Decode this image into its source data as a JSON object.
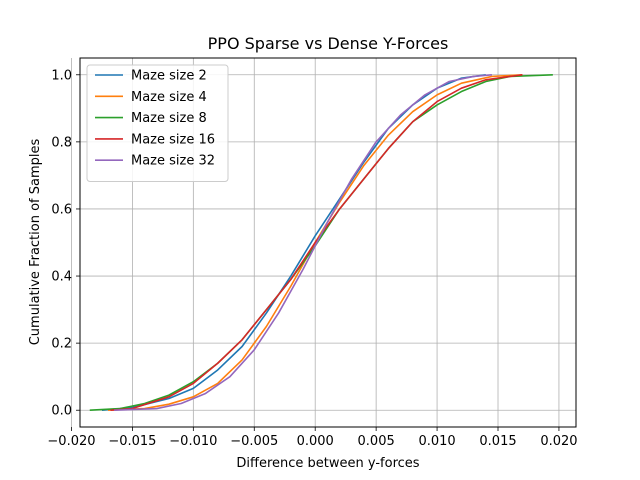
{
  "chart_data": {
    "type": "line",
    "title": "PPO Sparse vs Dense Y-Forces",
    "xlabel": "Difference between y-forces",
    "ylabel": "Cumulative Fraction of Samples",
    "xlim": [
      -0.0193,
      0.0214
    ],
    "ylim": [
      -0.05,
      1.05
    ],
    "x_ticks": [
      -0.02,
      -0.015,
      -0.01,
      -0.005,
      0.0,
      0.005,
      0.01,
      0.015,
      0.02
    ],
    "x_tick_labels": [
      "−0.020",
      "−0.015",
      "−0.010",
      "−0.005",
      "0.000",
      "0.005",
      "0.010",
      "0.015",
      "0.020"
    ],
    "y_ticks": [
      0.0,
      0.2,
      0.4,
      0.6,
      0.8,
      1.0
    ],
    "y_tick_labels": [
      "0.0",
      "0.2",
      "0.4",
      "0.6",
      "0.8",
      "1.0"
    ],
    "grid": true,
    "legend_position": "upper-left",
    "series": [
      {
        "name": "Maze size 2",
        "color": "#1f77b4",
        "x": [
          -0.0175,
          -0.015,
          -0.012,
          -0.01,
          -0.008,
          -0.006,
          -0.004,
          -0.002,
          0.0,
          0.002,
          0.004,
          0.006,
          0.008,
          0.01,
          0.012,
          0.014
        ],
        "y": [
          0.0,
          0.008,
          0.035,
          0.065,
          0.12,
          0.19,
          0.29,
          0.4,
          0.52,
          0.63,
          0.74,
          0.84,
          0.91,
          0.96,
          0.99,
          1.0
        ]
      },
      {
        "name": "Maze size 4",
        "color": "#ff7f0e",
        "x": [
          -0.017,
          -0.014,
          -0.012,
          -0.01,
          -0.008,
          -0.006,
          -0.004,
          -0.002,
          0.0,
          0.002,
          0.004,
          0.006,
          0.008,
          0.01,
          0.012,
          0.0145,
          0.017
        ],
        "y": [
          0.0,
          0.005,
          0.018,
          0.04,
          0.08,
          0.15,
          0.25,
          0.37,
          0.5,
          0.62,
          0.73,
          0.82,
          0.89,
          0.94,
          0.975,
          0.995,
          1.0
        ]
      },
      {
        "name": "Maze size 8",
        "color": "#2ca02c",
        "x": [
          -0.0185,
          -0.016,
          -0.014,
          -0.012,
          -0.01,
          -0.008,
          -0.006,
          -0.004,
          -0.002,
          0.0,
          0.002,
          0.004,
          0.006,
          0.008,
          0.01,
          0.012,
          0.014,
          0.016,
          0.0195
        ],
        "y": [
          0.0,
          0.005,
          0.02,
          0.045,
          0.085,
          0.14,
          0.21,
          0.3,
          0.39,
          0.49,
          0.6,
          0.69,
          0.78,
          0.86,
          0.91,
          0.95,
          0.98,
          0.995,
          1.0
        ]
      },
      {
        "name": "Maze size 16",
        "color": "#d62728",
        "x": [
          -0.0168,
          -0.015,
          -0.012,
          -0.01,
          -0.008,
          -0.006,
          -0.004,
          -0.002,
          0.0,
          0.002,
          0.004,
          0.006,
          0.008,
          0.01,
          0.012,
          0.014,
          0.017
        ],
        "y": [
          0.0,
          0.005,
          0.04,
          0.08,
          0.14,
          0.21,
          0.3,
          0.39,
          0.5,
          0.6,
          0.69,
          0.78,
          0.86,
          0.92,
          0.96,
          0.985,
          1.0
        ]
      },
      {
        "name": "Maze size 32",
        "color": "#9467bd",
        "x": [
          -0.0165,
          -0.013,
          -0.011,
          -0.009,
          -0.007,
          -0.005,
          -0.003,
          -0.001,
          0.001,
          0.003,
          0.005,
          0.007,
          0.009,
          0.011,
          0.013,
          0.0145
        ],
        "y": [
          0.0,
          0.005,
          0.02,
          0.05,
          0.1,
          0.18,
          0.29,
          0.42,
          0.56,
          0.69,
          0.8,
          0.88,
          0.94,
          0.98,
          0.995,
          1.0
        ]
      }
    ]
  }
}
